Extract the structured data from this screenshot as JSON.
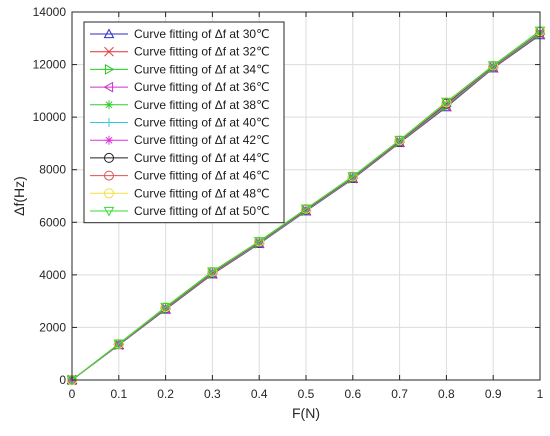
{
  "chart_data": {
    "type": "line",
    "xlabel": "F(N)",
    "ylabel": "Δf(Hz)",
    "xlim": [
      0,
      1
    ],
    "ylim": [
      0,
      14000
    ],
    "x_ticks": [
      0,
      0.1,
      0.2,
      0.3,
      0.4,
      0.5,
      0.6,
      0.7,
      0.8,
      0.9,
      1
    ],
    "x_tick_labels": [
      "0",
      "0.1",
      "0.2",
      "0.3",
      "0.4",
      "0.5",
      "0.6",
      "0.7",
      "0.8",
      "0.9",
      "1"
    ],
    "y_ticks": [
      0,
      2000,
      4000,
      6000,
      8000,
      10000,
      12000,
      14000
    ],
    "y_tick_labels": [
      "0",
      "2000",
      "4000",
      "6000",
      "8000",
      "10000",
      "12000",
      "14000"
    ],
    "grid": true,
    "legend_position": "top-left",
    "x": [
      0,
      0.1,
      0.2,
      0.3,
      0.4,
      0.5,
      0.6,
      0.7,
      0.8,
      0.9,
      1
    ],
    "series": [
      {
        "name": "Curve fitting of Δf at 30℃",
        "color": "#2b2bcc",
        "marker": "triangle-up",
        "values": [
          0,
          1330,
          2680,
          4020,
          5180,
          6420,
          7650,
          9020,
          10380,
          11860,
          13120
        ]
      },
      {
        "name": "Curve fitting of Δf at 32℃",
        "color": "#e03030",
        "marker": "x",
        "values": [
          0,
          1335,
          2690,
          4030,
          5190,
          6430,
          7660,
          9030,
          10400,
          11870,
          13140
        ]
      },
      {
        "name": "Curve fitting of Δf at 34℃",
        "color": "#22cc22",
        "marker": "triangle-right",
        "values": [
          0,
          1340,
          2700,
          4050,
          5200,
          6440,
          7670,
          9050,
          10420,
          11890,
          13160
        ]
      },
      {
        "name": "Curve fitting of Δf at 36℃",
        "color": "#cc33cc",
        "marker": "triangle-left",
        "values": [
          0,
          1345,
          2710,
          4060,
          5210,
          6450,
          7680,
          9060,
          10440,
          11900,
          13180
        ]
      },
      {
        "name": "Curve fitting of Δf at 38℃",
        "color": "#33cc33",
        "marker": "asterisk",
        "values": [
          0,
          1350,
          2720,
          4070,
          5220,
          6460,
          7690,
          9070,
          10460,
          11910,
          13200
        ]
      },
      {
        "name": "Curve fitting of Δf at 40℃",
        "color": "#33c6e0",
        "marker": "plus",
        "values": [
          0,
          1355,
          2730,
          4080,
          5230,
          6470,
          7700,
          9080,
          10480,
          11920,
          13220
        ]
      },
      {
        "name": "Curve fitting of Δf at 42℃",
        "color": "#dd33dd",
        "marker": "asterisk",
        "values": [
          0,
          1360,
          2740,
          4090,
          5240,
          6480,
          7710,
          9090,
          10500,
          11930,
          13240
        ]
      },
      {
        "name": "Curve fitting of Δf at 44℃",
        "color": "#222222",
        "marker": "circle",
        "values": [
          0,
          1365,
          2750,
          4100,
          5250,
          6490,
          7720,
          9100,
          10520,
          11940,
          13250
        ]
      },
      {
        "name": "Curve fitting of Δf at 46℃",
        "color": "#e05050",
        "marker": "circle",
        "values": [
          0,
          1370,
          2760,
          4110,
          5260,
          6500,
          7730,
          9110,
          10540,
          11950,
          13260
        ]
      },
      {
        "name": "Curve fitting of Δf at 48℃",
        "color": "#f0e040",
        "marker": "circle",
        "values": [
          0,
          1375,
          2770,
          4120,
          5270,
          6510,
          7740,
          9120,
          10560,
          11960,
          13270
        ]
      },
      {
        "name": "Curve fitting of Δf at 50℃",
        "color": "#33dd33",
        "marker": "triangle-down",
        "values": [
          0,
          1380,
          2780,
          4130,
          5280,
          6520,
          7750,
          9130,
          10580,
          11970,
          13290
        ]
      }
    ]
  }
}
